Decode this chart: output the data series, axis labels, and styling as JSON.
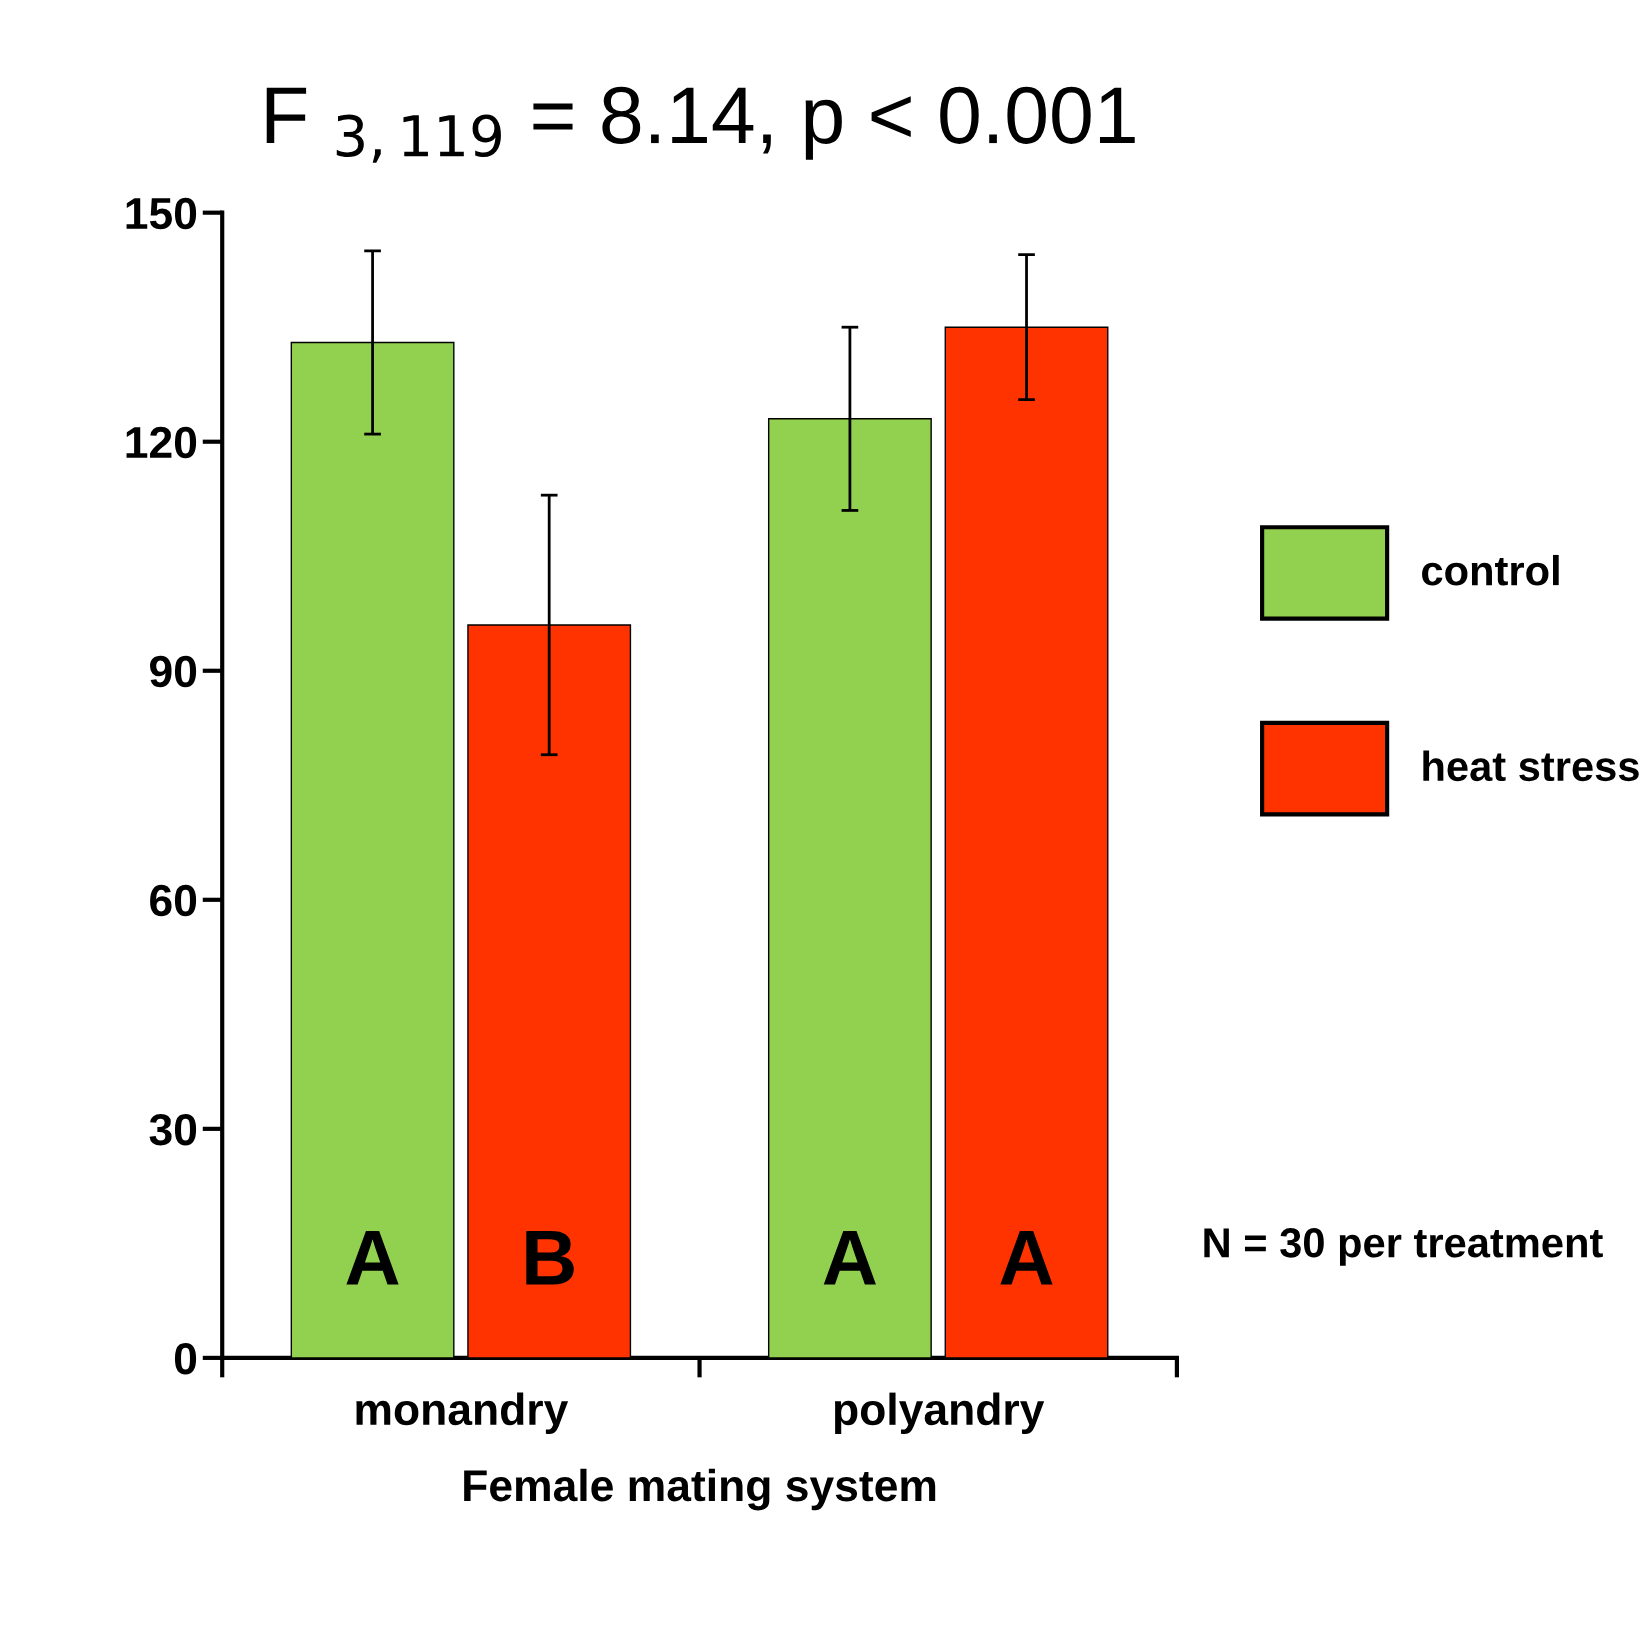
{
  "chart_data": {
    "type": "bar",
    "title": "F $_{3,119}$ = 8.14, p < 0.001",
    "xlabel": "Female mating system",
    "categories": [
      "monandry",
      "polyandry"
    ],
    "series": [
      {
        "name": "control",
        "color": "#92d050",
        "values": [
          133,
          123
        ],
        "errors": [
          12,
          12
        ]
      },
      {
        "name": "heat stress",
        "color": "#ff3300",
        "values": [
          96,
          135
        ],
        "errors": [
          17,
          9.5
        ]
      }
    ],
    "annotations": [
      "A",
      "B",
      "A",
      "A",
      "N = 30 per treatment"
    ],
    "ylim": [
      0,
      150
    ],
    "yticks": [
      0,
      30,
      60,
      90,
      120,
      150
    ],
    "grid": false,
    "legend": "right"
  }
}
